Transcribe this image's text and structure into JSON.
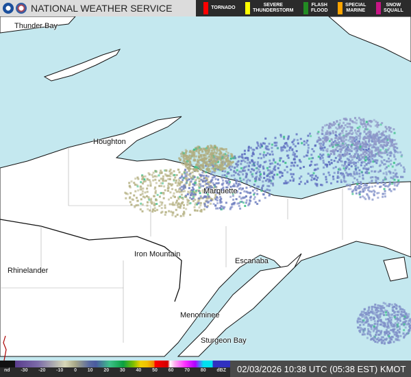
{
  "header": {
    "title": "NATIONAL WEATHER SERVICE",
    "logos": [
      "noaa-logo",
      "nws-logo"
    ]
  },
  "warnings": [
    {
      "label": "TORNADO",
      "color": "#ff0000"
    },
    {
      "label": "SEVERE\nTHUNDERSTORM",
      "color": "#ffff00"
    },
    {
      "label": "FLASH\nFLOOD",
      "color": "#228b22"
    },
    {
      "label": "SPECIAL\nMARINE",
      "color": "#ffa500"
    },
    {
      "label": "SNOW\nSQUALL",
      "color": "#c71585"
    }
  ],
  "cities": [
    "Thunder Bay",
    "Houghton",
    "Marquette",
    "Iron Mountain",
    "Escanaba",
    "Rhinelander",
    "Menominee",
    "Sturgeon Bay"
  ],
  "legend": {
    "ticks": [
      "nd",
      "-30",
      "-20",
      "-10",
      "0",
      "10",
      "20",
      "30",
      "40",
      "50",
      "60",
      "70",
      "80",
      "dBZ"
    ]
  },
  "timestamp": "02/03/2026 10:38 UTC (05:38 EST) KMOT",
  "colors": {
    "water": "#c4e8ef",
    "land": "#ffffff"
  }
}
